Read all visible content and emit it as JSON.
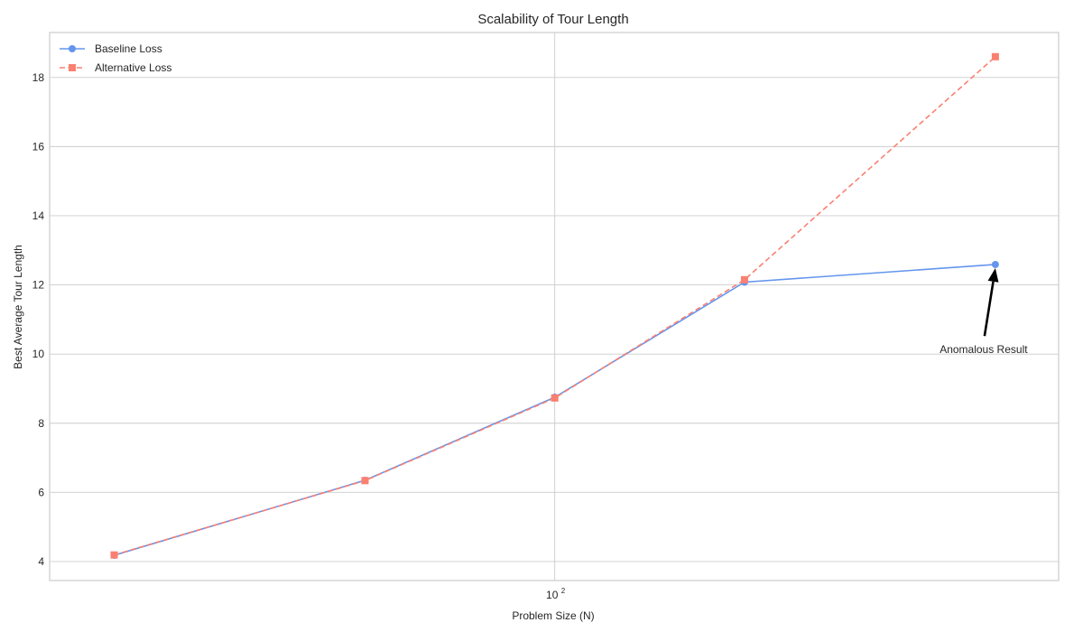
{
  "chart_data": {
    "type": "line",
    "title": "Scalability of Tour Length",
    "xlabel": "Problem Size (N)",
    "ylabel": "Best Average Tour Length",
    "xscale": "log",
    "x": [
      20,
      50,
      100,
      200,
      500
    ],
    "xlim": [
      15.8,
      630
    ],
    "ylim": [
      3.45,
      19.3
    ],
    "x_ticks": [
      {
        "value": 100,
        "base": "10",
        "exp": "2"
      }
    ],
    "y_ticks": [
      4,
      6,
      8,
      10,
      12,
      14,
      16,
      18
    ],
    "grid": true,
    "legend_position": "top-left",
    "series": [
      {
        "name": "Baseline Loss",
        "values": [
          4.18,
          6.35,
          8.75,
          12.08,
          12.59
        ],
        "color": "#6495ed",
        "linestyle": "solid",
        "marker": "circle"
      },
      {
        "name": "Alternative Loss",
        "values": [
          4.19,
          6.34,
          8.73,
          12.15,
          18.6
        ],
        "color": "#fa8072",
        "linestyle": "dashed",
        "marker": "square"
      }
    ],
    "annotations": [
      {
        "text": "Anomalous Result",
        "target_x": 500,
        "target_y": 12.59,
        "text_x": 500,
        "text_y": 10.0
      }
    ]
  }
}
